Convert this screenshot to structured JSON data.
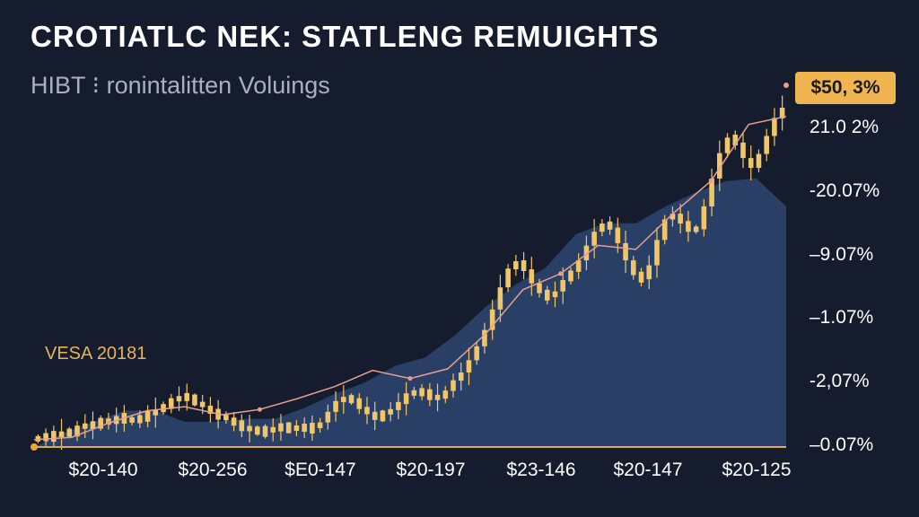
{
  "title": "CROTIATLC NEK: STATLENG REMUIGHTS",
  "subtitle": "HIBT ⁝ ronintalitten Voluings",
  "annotation": "VESA 20181",
  "badge": "$50, 3%",
  "colors": {
    "background": "#141c2e",
    "candle": "#f0c66a",
    "area": "#2a3f66",
    "trend": "#e7a08f",
    "baseline": "#e9a93a"
  },
  "chart_data": {
    "type": "line",
    "title": "CROTIATLC NEK: STATLENG REMUIGHTS",
    "subtitle": "HIBT ⁝ ronintalitten Voluings",
    "grid": false,
    "x_tick_labels": [
      "$20-140",
      "$20-256",
      "$E0-147",
      "$20-197",
      "$23-146",
      "$20-147",
      "$20-125"
    ],
    "y_tick_labels": [
      "21.0 2%",
      "-20.07%",
      "–9.07%",
      "–1.07%",
      "-2,07%",
      "–0.07%"
    ],
    "highlight_label": "$50, 3%",
    "series": [
      {
        "type": "candlestick",
        "values": [
          1.0,
          1.4,
          1.2,
          1.9,
          1.6,
          2.3,
          2.8,
          2.5,
          3.3,
          3.0,
          3.6,
          3.4,
          3.2,
          3.6,
          3.9,
          4.5,
          5.0,
          5.6,
          6.2,
          6.0,
          5.5,
          4.9,
          4.2,
          3.8,
          3.4,
          2.8,
          2.4,
          2.1,
          1.9,
          1.9,
          2.3,
          2.5,
          2.2,
          2.4,
          2.3,
          2.3,
          3.0,
          4.3,
          5.6,
          6.0,
          5.7,
          4.9,
          4.0,
          3.6,
          4.0,
          4.6,
          5.4,
          6.4,
          6.8,
          6.6,
          6.2,
          5.9,
          6.9,
          8.1,
          9.1,
          10.6,
          12.3,
          14.3,
          16.8,
          19.5,
          21.8,
          22.6,
          21.7,
          20.0,
          18.8,
          18.3,
          19.0,
          20.4,
          21.4,
          22.8,
          24.6,
          26.3,
          27.3,
          26.8,
          24.9,
          22.8,
          21.0,
          20.5,
          22.2,
          25.3,
          27.8,
          28.5,
          27.3,
          26.6,
          26.6,
          29.4,
          32.8,
          35.9,
          37.8,
          37.2,
          35.3,
          34.1,
          35.8,
          38.0,
          40.2,
          41.4
        ]
      },
      {
        "type": "line",
        "values": [
          1.8,
          2.4,
          6.0,
          9.0,
          10.0,
          8.0,
          9.3,
          12.0,
          15.0,
          19.0,
          17.0,
          19.4,
          28.0,
          39.0,
          43.0,
          50.0,
          49.0,
          58.0,
          66.0,
          80.0,
          82.0
        ]
      },
      {
        "type": "area",
        "values": [
          0,
          2.5,
          4.5,
          6.5,
          6.5,
          4.5,
          4.5,
          5.0,
          5.0,
          7.0,
          9.5,
          11.5,
          14.5,
          16.0,
          20.0,
          25.0,
          29.0,
          32.0,
          38.0,
          40.0,
          40.0,
          43.0,
          45.5,
          47.5,
          48.0,
          43.0
        ]
      }
    ]
  }
}
